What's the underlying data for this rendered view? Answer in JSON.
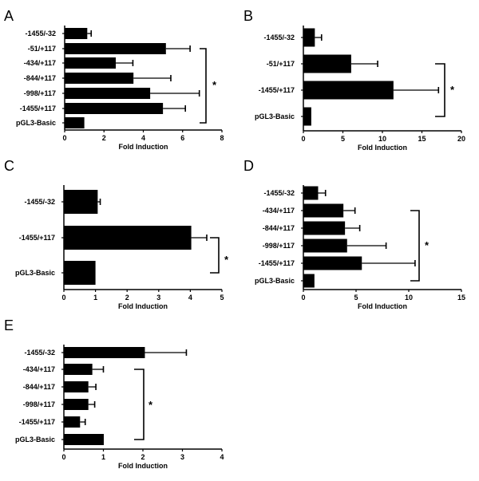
{
  "chart_data": [
    {
      "panel": "A",
      "type": "bar",
      "orientation": "horizontal",
      "xlabel": "Fold Induction",
      "xlim": [
        0,
        8
      ],
      "xticks": [
        0,
        2,
        4,
        6,
        8
      ],
      "categories": [
        "-1455/-32",
        "-51/+117",
        "-434/+117",
        "-844/+117",
        "-998/+117",
        "-1455/+117",
        "pGL3-Basic"
      ],
      "values": [
        1.15,
        5.15,
        2.6,
        3.5,
        4.35,
        5.0,
        1.0
      ],
      "error": [
        0.2,
        1.23,
        0.87,
        1.9,
        2.5,
        1.14,
        0
      ],
      "significance": {
        "label": "*",
        "from": "-51/+117",
        "to": "pGL3-Basic"
      }
    },
    {
      "panel": "B",
      "type": "bar",
      "orientation": "horizontal",
      "xlabel": "Fold Induction",
      "xlim": [
        0,
        20
      ],
      "xticks": [
        0,
        5,
        10,
        15,
        20
      ],
      "categories": [
        "-1455/-32",
        "-51/+117",
        "-1455/+117",
        "pGL3-Basic"
      ],
      "values": [
        1.45,
        6.05,
        11.4,
        1.0
      ],
      "error": [
        0.85,
        3.35,
        5.7,
        0
      ],
      "significance": {
        "label": "*",
        "from": "-51/+117",
        "to": "pGL3-Basic"
      }
    },
    {
      "panel": "C",
      "type": "bar",
      "orientation": "horizontal",
      "xlabel": "Fold Induction",
      "xlim": [
        0,
        5
      ],
      "xticks": [
        0,
        1,
        2,
        3,
        4,
        5
      ],
      "categories": [
        "-1455/-32",
        "-1455/+117",
        "pGL3-Basic"
      ],
      "values": [
        1.07,
        4.03,
        1.0
      ],
      "error": [
        0.08,
        0.49,
        0
      ],
      "significance": {
        "label": "*",
        "from": "-1455/+117",
        "to": "pGL3-Basic"
      }
    },
    {
      "panel": "D",
      "type": "bar",
      "orientation": "horizontal",
      "xlabel": "Fold Induction",
      "xlim": [
        0,
        15
      ],
      "xticks": [
        0,
        5,
        10,
        15
      ],
      "categories": [
        "-1455/-32",
        "-434/+117",
        "-844/+117",
        "-998/+117",
        "-1455/+117",
        "pGL3-Basic"
      ],
      "values": [
        1.4,
        3.8,
        3.95,
        4.15,
        5.55,
        1.05
      ],
      "error": [
        0.7,
        1.1,
        1.4,
        3.7,
        5.05,
        0
      ],
      "significance": {
        "label": "*",
        "from": "-434/+117",
        "to": "pGL3-Basic"
      }
    },
    {
      "panel": "E",
      "type": "bar",
      "orientation": "horizontal",
      "xlabel": "Fold Induction",
      "xlim": [
        0,
        4
      ],
      "xticks": [
        0,
        1,
        2,
        3,
        4
      ],
      "categories": [
        "-1455/-32",
        "-434/+117",
        "-844/+117",
        "-998/+117",
        "-1455/+117",
        "pGL3-Basic"
      ],
      "values": [
        2.05,
        0.72,
        0.62,
        0.62,
        0.41,
        1.01
      ],
      "error": [
        1.05,
        0.28,
        0.19,
        0.16,
        0.13,
        0
      ],
      "significance": {
        "label": "*",
        "from": "-434/+117",
        "to": "pGL3-Basic"
      }
    }
  ],
  "colors": {
    "bar": "#000000",
    "background": "#ffffff"
  }
}
